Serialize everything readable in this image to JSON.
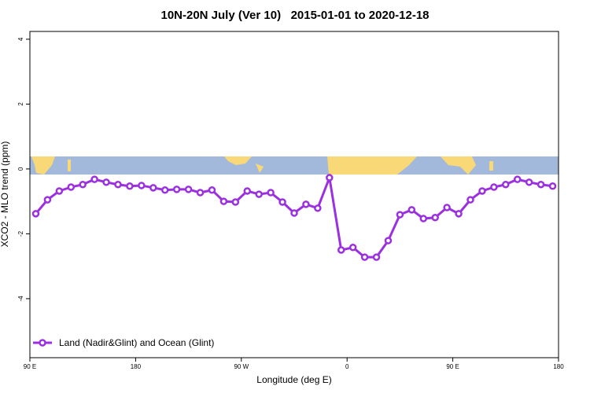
{
  "chart_data": {
    "type": "line",
    "title": "10N-20N July (Ver 10)   2015-01-01 to 2020-12-18",
    "x_label": "Longitude (deg E)",
    "y_label": "XCO2 - MLO trend (ppm)",
    "x": [
      95,
      105,
      115,
      125,
      135,
      145,
      155,
      165,
      175,
      185,
      195,
      205,
      215,
      225,
      235,
      245,
      255,
      265,
      275,
      285,
      295,
      305,
      315,
      325,
      335,
      345,
      355,
      365,
      375,
      385,
      395,
      405,
      415,
      425,
      435,
      445,
      455,
      465,
      475,
      485,
      495,
      505,
      515,
      525,
      535
    ],
    "series": [
      {
        "name": "Land (Nadir&Glint) and Ocean (Glint)",
        "color": "#9b30e0",
        "values": [
          -1.38,
          -0.95,
          -0.68,
          -0.56,
          -0.48,
          -0.32,
          -0.41,
          -0.48,
          -0.53,
          -0.51,
          -0.58,
          -0.65,
          -0.63,
          -0.63,
          -0.73,
          -0.65,
          -1.0,
          -1.02,
          -0.68,
          -0.78,
          -0.73,
          -1.02,
          -1.36,
          -1.09,
          -1.21,
          -0.27,
          -2.5,
          -2.42,
          -2.72,
          -2.72,
          -2.21,
          -1.41,
          -1.26,
          -1.53,
          -1.5,
          -1.19,
          -1.38,
          -0.95,
          -0.68,
          -0.56,
          -0.48,
          -0.32,
          -0.41,
          -0.48,
          -0.53
        ]
      }
    ],
    "xlim": [
      90,
      540
    ],
    "xticks": [
      {
        "value": 90,
        "label": "90 E"
      },
      180,
      {
        "value": 270,
        "label": "90 W"
      },
      {
        "value": 360,
        "label": "0"
      },
      {
        "value": 450,
        "label": "90 E"
      },
      {
        "value": 540,
        "label": "180"
      }
    ],
    "ylim": [
      -5.82,
      4.24
    ],
    "yticks": [
      -4,
      -2,
      0,
      2,
      4
    ],
    "legend": "bottom-left"
  }
}
